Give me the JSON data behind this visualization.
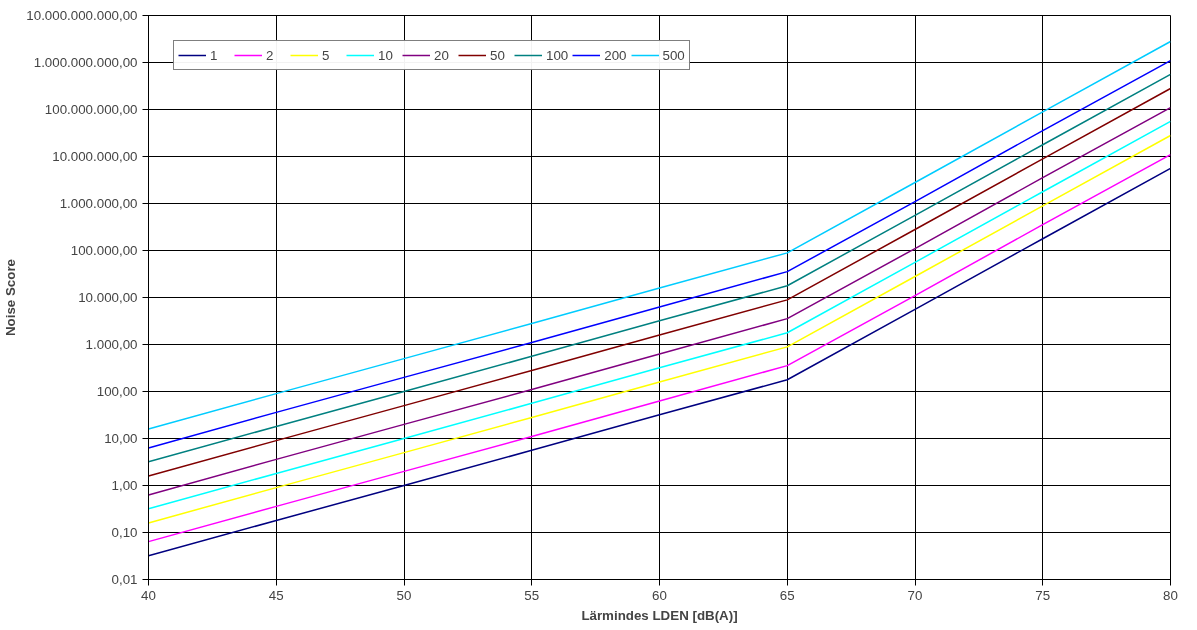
{
  "chart_data": {
    "type": "line",
    "xlabel": "Lärmindes LDEN [dB(A)]",
    "ylabel": "Noise Score",
    "log": "y",
    "grid": true,
    "legend": "top left",
    "marker": "none",
    "line_style": "solid",
    "x": [
      40,
      45,
      50,
      55,
      60,
      65,
      70,
      75,
      80
    ],
    "xlim": [
      40,
      80
    ],
    "xticks": [
      40,
      45,
      50,
      55,
      60,
      65,
      70,
      75,
      80
    ],
    "ylim": [
      0.01,
      10000000000
    ],
    "yticks": [
      {
        "value": 0.01,
        "label": "0,01"
      },
      {
        "value": 0.1,
        "label": "0,10"
      },
      {
        "value": 1,
        "label": "1,00"
      },
      {
        "value": 10,
        "label": "10,00"
      },
      {
        "value": 100,
        "label": "100,00"
      },
      {
        "value": 1000,
        "label": "1.000,00"
      },
      {
        "value": 10000,
        "label": "10.000,00"
      },
      {
        "value": 100000,
        "label": "100.000,00"
      },
      {
        "value": 1000000,
        "label": "1.000.000,00"
      },
      {
        "value": 10000000,
        "label": "10.000.000,00"
      },
      {
        "value": 100000000,
        "label": "100.000.000,00"
      },
      {
        "value": 1000000000,
        "label": "1.000.000.000,00"
      },
      {
        "value": 10000000000,
        "label": "10.000.000.000,00"
      }
    ],
    "series": [
      {
        "name": "1",
        "color": "#000080",
        "values": [
          0.032,
          0.18,
          1,
          5.6,
          32,
          178,
          5600,
          178000,
          5600000
        ]
      },
      {
        "name": "2",
        "color": "#ff00ff",
        "values": [
          0.064,
          0.36,
          2,
          11,
          63,
          355,
          11000,
          355000,
          11000000
        ]
      },
      {
        "name": "5",
        "color": "#ffff00",
        "values": [
          0.16,
          0.9,
          5,
          28,
          160,
          890,
          28000,
          890000,
          28000000
        ]
      },
      {
        "name": "10",
        "color": "#00ffff",
        "values": [
          0.32,
          1.8,
          10,
          56,
          320,
          1780,
          56000,
          1780000,
          56000000
        ]
      },
      {
        "name": "20",
        "color": "#800080",
        "values": [
          0.63,
          3.6,
          20,
          110,
          630,
          3550,
          110000,
          3550000,
          110000000
        ]
      },
      {
        "name": "50",
        "color": "#800000",
        "values": [
          1.6,
          9,
          50,
          280,
          1600,
          8900,
          280000,
          8900000,
          280000000
        ]
      },
      {
        "name": "100",
        "color": "#008080",
        "values": [
          3.2,
          18,
          100,
          560,
          3200,
          17800,
          560000,
          17800000,
          560000000
        ]
      },
      {
        "name": "200",
        "color": "#0000ff",
        "values": [
          6.3,
          36,
          200,
          1100,
          6300,
          35500,
          1100000,
          35500000,
          1100000000
        ]
      },
      {
        "name": "500",
        "color": "#00ccff",
        "values": [
          16,
          90,
          500,
          2800,
          16000,
          89000,
          2800000,
          89000000,
          2800000000
        ]
      }
    ]
  }
}
